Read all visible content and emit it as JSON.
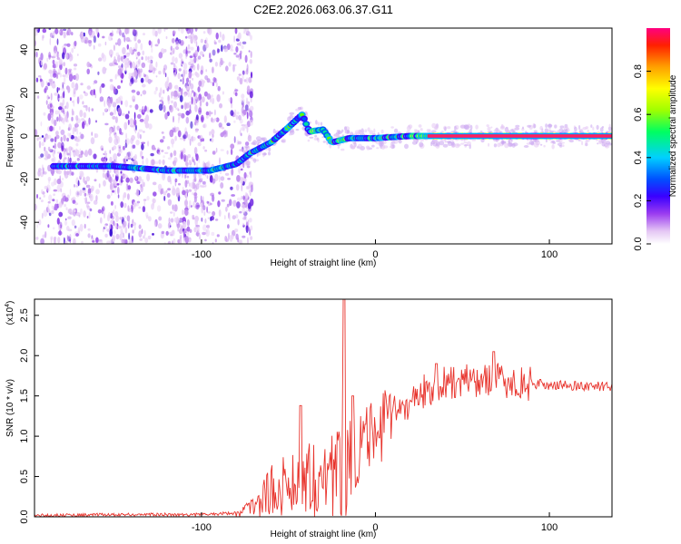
{
  "figure": {
    "title": "C2E2.2026.063.06.37.G11"
  },
  "chart_data": [
    {
      "type": "heatmap",
      "name": "spectrogram",
      "xlabel": "Height of straight line (km)",
      "ylabel": "Frequency (Hz)",
      "xlim": [
        -196,
        136
      ],
      "ylim": [
        -50,
        50
      ],
      "xticks": [
        -100,
        0,
        100
      ],
      "yticks": [
        -40,
        -20,
        0,
        20,
        40
      ],
      "colorbar": {
        "label": "Normalized spectral amplitude",
        "range": [
          0,
          1
        ],
        "ticks": [
          0.0,
          0.2,
          0.4,
          0.6,
          0.8
        ],
        "colors": [
          "#ffffff",
          "#e4c6f4",
          "#9b3cf0",
          "#3a00ff",
          "#0050ff",
          "#00d0ff",
          "#00ff60",
          "#a0ff00",
          "#ffff00",
          "#ffa000",
          "#ff2000",
          "#ff0080"
        ]
      },
      "ridge": {
        "description": "dominant frequency track",
        "points": [
          {
            "x": -180,
            "y": -14
          },
          {
            "x": -150,
            "y": -14
          },
          {
            "x": -120,
            "y": -16
          },
          {
            "x": -95,
            "y": -16
          },
          {
            "x": -80,
            "y": -13
          },
          {
            "x": -72,
            "y": -8
          },
          {
            "x": -60,
            "y": -3
          },
          {
            "x": -50,
            "y": 4
          },
          {
            "x": -42,
            "y": 10
          },
          {
            "x": -38,
            "y": 2
          },
          {
            "x": -30,
            "y": 3
          },
          {
            "x": -25,
            "y": -3
          },
          {
            "x": -15,
            "y": -1
          },
          {
            "x": 0,
            "y": -1
          },
          {
            "x": 20,
            "y": 0
          },
          {
            "x": 40,
            "y": 0
          },
          {
            "x": 80,
            "y": 0
          },
          {
            "x": 136,
            "y": 0
          }
        ]
      }
    },
    {
      "type": "line",
      "name": "snr",
      "xlabel": "Height of straight line (km)",
      "ylabel": "SNR (10 * v/v)",
      "scale_label": "(x10",
      "scale_exponent": "4",
      "xlim": [
        -196,
        136
      ],
      "ylim": [
        0,
        2.7
      ],
      "xticks": [
        -100,
        0,
        100
      ],
      "yticks": [
        0.0,
        0.5,
        1.0,
        1.5,
        2.0,
        2.5
      ],
      "line_color": "#e8332c",
      "envelope": [
        {
          "x": -196,
          "y": 0.02
        },
        {
          "x": -140,
          "y": 0.03
        },
        {
          "x": -100,
          "y": 0.03
        },
        {
          "x": -80,
          "y": 0.05
        },
        {
          "x": -70,
          "y": 0.15
        },
        {
          "x": -60,
          "y": 0.35
        },
        {
          "x": -50,
          "y": 0.45
        },
        {
          "x": -40,
          "y": 0.6
        },
        {
          "x": -30,
          "y": 0.5
        },
        {
          "x": -20,
          "y": 0.7
        },
        {
          "x": -10,
          "y": 0.9
        },
        {
          "x": 0,
          "y": 1.05
        },
        {
          "x": 10,
          "y": 1.3
        },
        {
          "x": 20,
          "y": 1.45
        },
        {
          "x": 30,
          "y": 1.6
        },
        {
          "x": 40,
          "y": 1.68
        },
        {
          "x": 50,
          "y": 1.7
        },
        {
          "x": 60,
          "y": 1.72
        },
        {
          "x": 70,
          "y": 1.72
        },
        {
          "x": 80,
          "y": 1.68
        },
        {
          "x": 90,
          "y": 1.66
        },
        {
          "x": 100,
          "y": 1.64
        },
        {
          "x": 120,
          "y": 1.63
        },
        {
          "x": 136,
          "y": 1.62
        }
      ],
      "peaks": [
        {
          "x": -43,
          "y": 1.38
        },
        {
          "x": -18,
          "y": 2.7
        },
        {
          "x": -13,
          "y": 1.5
        },
        {
          "x": 35,
          "y": 1.9
        },
        {
          "x": 68,
          "y": 2.05
        }
      ]
    }
  ]
}
